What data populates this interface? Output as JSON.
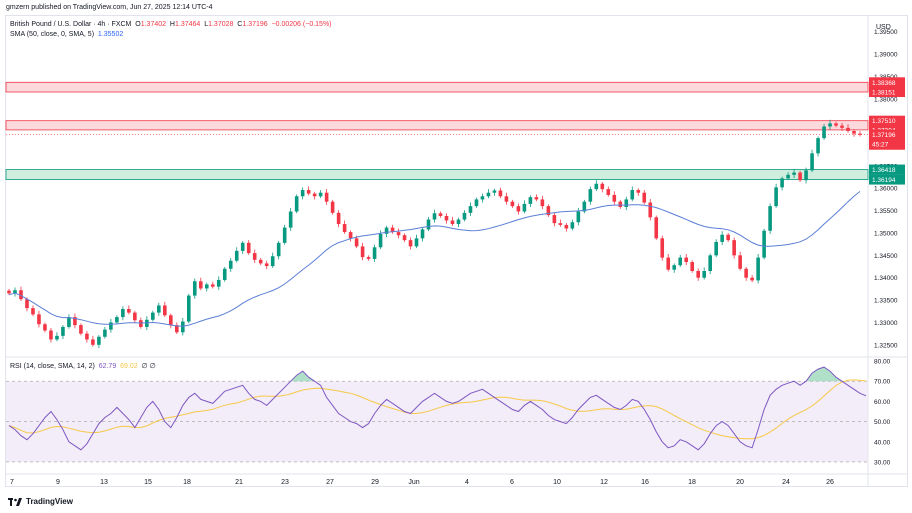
{
  "header": {
    "published": "gmzern published on TradingView.com, Jun 27, 2025 12:14 UTC-4"
  },
  "legend": {
    "symbol": "British Pound / U.S. Dollar · 4h · FXCM",
    "o_label": "O",
    "o_val": "1.37402",
    "h_label": "H",
    "h_val": "1.37464",
    "l_label": "L",
    "l_val": "1.37028",
    "c_label": "C",
    "c_val": "1.37196",
    "change": "−0.00206 (−0.15%)",
    "sma_label": "SMA (50, close, 0, SMA, 5)",
    "sma_val": "1.35502",
    "rsi_label": "RSI (14, close, SMA, 14, 2)",
    "rsi_val": "62.79",
    "rsi_sma_val": "69.02",
    "rsi_extra": "∅ ∅"
  },
  "footer": {
    "brand": "TradingView"
  },
  "chart_data": {
    "type": "candlestick",
    "title": "British Pound / U.S. Dollar · 4h · FXCM",
    "currency": "USD",
    "price_axis": [
      "1.39500",
      "1.39000",
      "1.38500",
      "1.38000",
      "1.37500",
      "1.37000",
      "1.36500",
      "1.36000",
      "1.35500",
      "1.35000",
      "1.34500",
      "1.34000",
      "1.33500",
      "1.33000",
      "1.32500"
    ],
    "ylim": [
      1.3225,
      1.3985
    ],
    "time_axis": [
      "7",
      "9",
      "13",
      "15",
      "18",
      "21",
      "23",
      "27",
      "29",
      "Jun",
      "4",
      "6",
      "10",
      "12",
      "16",
      "18",
      "20",
      "24",
      "26"
    ],
    "zones": [
      {
        "name": "resistance-upper",
        "low": 1.38151,
        "high": 1.38368,
        "color": "#f23645",
        "labels": [
          "1.38368",
          "1.38151"
        ]
      },
      {
        "name": "resistance-lower",
        "low": 1.37304,
        "high": 1.3751,
        "color": "#f23645",
        "labels": [
          "1.37510",
          "1.37304"
        ]
      },
      {
        "name": "support",
        "low": 1.36194,
        "high": 1.36418,
        "color": "#089981",
        "labels": [
          "1.36418",
          "1.36194"
        ]
      }
    ],
    "current_price": {
      "value": "1.37196",
      "countdown": "45:27",
      "color": "#f23645"
    },
    "closes": [
      1.3365,
      1.3372,
      1.3352,
      1.3332,
      1.3318,
      1.3296,
      1.3282,
      1.3262,
      1.327,
      1.329,
      1.3312,
      1.3294,
      1.3275,
      1.3262,
      1.325,
      1.3268,
      1.3284,
      1.33,
      1.3312,
      1.333,
      1.3322,
      1.3305,
      1.329,
      1.3306,
      1.3322,
      1.3338,
      1.3316,
      1.3294,
      1.3278,
      1.3302,
      1.336,
      1.3392,
      1.3376,
      1.3385,
      1.338,
      1.3395,
      1.342,
      1.3438,
      1.346,
      1.3478,
      1.3455,
      1.344,
      1.3432,
      1.3426,
      1.3448,
      1.3478,
      1.3512,
      1.3548,
      1.3582,
      1.3596,
      1.3588,
      1.3582,
      1.359,
      1.357,
      1.3545,
      1.352,
      1.3502,
      1.3488,
      1.347,
      1.3446,
      1.3442,
      1.3468,
      1.3498,
      1.3512,
      1.3502,
      1.3495,
      1.3484,
      1.347,
      1.3488,
      1.3508,
      1.353,
      1.3544,
      1.3538,
      1.3528,
      1.352,
      1.353,
      1.3545,
      1.356,
      1.3575,
      1.3582,
      1.359,
      1.3595,
      1.3582,
      1.357,
      1.356,
      1.3548,
      1.3565,
      1.358,
      1.3575,
      1.356,
      1.354,
      1.3522,
      1.3518,
      1.351,
      1.3524,
      1.3548,
      1.357,
      1.3598,
      1.361,
      1.3598,
      1.3585,
      1.357,
      1.3558,
      1.3575,
      1.3596,
      1.359,
      1.3568,
      1.3535,
      1.3488,
      1.3445,
      1.3418,
      1.3428,
      1.3445,
      1.3435,
      1.3415,
      1.34,
      1.3415,
      1.345,
      1.348,
      1.3496,
      1.3484,
      1.345,
      1.342,
      1.34,
      1.3394,
      1.3445,
      1.3505,
      1.356,
      1.3602,
      1.3622,
      1.363,
      1.3635,
      1.3618,
      1.364,
      1.3678,
      1.3712,
      1.3738,
      1.3745,
      1.374,
      1.3735,
      1.3728,
      1.3722,
      1.37196
    ],
    "sma_values": "SMA (50)",
    "rsi": {
      "axis": [
        "80.00",
        "70.00",
        "60.00",
        "50.00",
        "40.00",
        "30.00"
      ],
      "ylim": [
        26,
        82
      ],
      "levels": [
        70,
        50,
        30
      ],
      "values": [
        48,
        46,
        43,
        41,
        44,
        48,
        52,
        55,
        51,
        46,
        40,
        38,
        36,
        39,
        44,
        49,
        52,
        54,
        57,
        54,
        51,
        47,
        52,
        57,
        60,
        56,
        50,
        47,
        52,
        58,
        62,
        64,
        61,
        60,
        59,
        62,
        65,
        66,
        67,
        68,
        64,
        61,
        60,
        58,
        61,
        64,
        67,
        70,
        73,
        75,
        72,
        70,
        68,
        62,
        58,
        54,
        52,
        50,
        49,
        47,
        49,
        54,
        58,
        61,
        59,
        57,
        55,
        54,
        57,
        60,
        62,
        64,
        62,
        60,
        59,
        60,
        62,
        64,
        65,
        66,
        64,
        62,
        60,
        58,
        56,
        55,
        58,
        60,
        58,
        56,
        53,
        51,
        50,
        49,
        52,
        56,
        59,
        62,
        63,
        61,
        59,
        57,
        56,
        58,
        61,
        60,
        56,
        51,
        45,
        40,
        37,
        38,
        41,
        40,
        38,
        36,
        39,
        44,
        48,
        50,
        48,
        44,
        40,
        38,
        37,
        46,
        56,
        63,
        66,
        68,
        69,
        70,
        68,
        70,
        74,
        76,
        77,
        75,
        72,
        70,
        68,
        66,
        64,
        62.79
      ],
      "sma_label_val": "69.02"
    }
  }
}
